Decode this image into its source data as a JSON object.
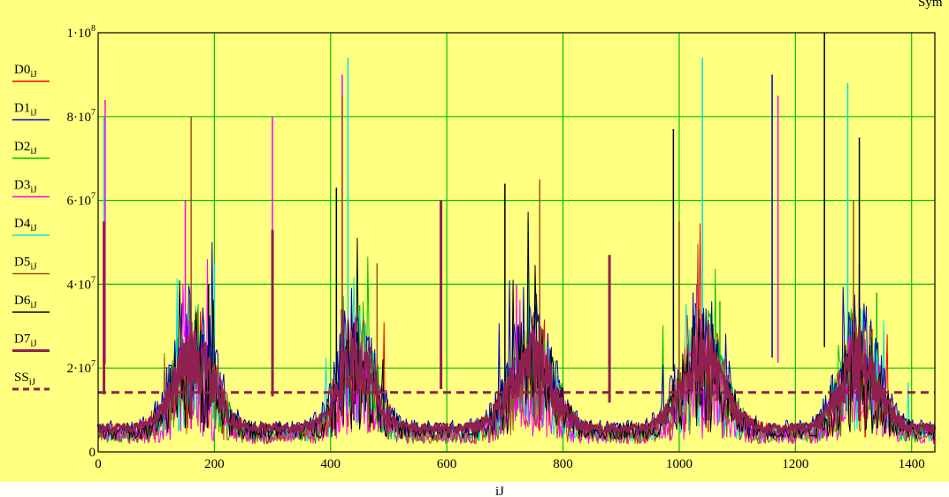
{
  "colors": {
    "background": "#ffff80",
    "grid": "#00c000",
    "frame": "#000000"
  },
  "corner_text": "Sym",
  "chart_data": {
    "type": "line",
    "xlabel": "iJ",
    "ylabel": "",
    "xlim": [
      0,
      1440
    ],
    "ylim": [
      0,
      100000000
    ],
    "x_ticks": [
      {
        "value": 0,
        "label": "0"
      },
      {
        "value": 200,
        "label": "200"
      },
      {
        "value": 400,
        "label": "400"
      },
      {
        "value": 600,
        "label": "600"
      },
      {
        "value": 800,
        "label": "800"
      },
      {
        "value": 1000,
        "label": "1000"
      },
      {
        "value": 1200,
        "label": "1200"
      },
      {
        "value": 1400,
        "label": "1400"
      }
    ],
    "y_ticks": [
      {
        "value": 0,
        "mant": "0",
        "exp": ""
      },
      {
        "value": 20000000,
        "mant": "2·10",
        "exp": "7"
      },
      {
        "value": 40000000,
        "mant": "4·10",
        "exp": "7"
      },
      {
        "value": 60000000,
        "mant": "6·10",
        "exp": "7"
      },
      {
        "value": 80000000,
        "mant": "8·10",
        "exp": "7"
      },
      {
        "value": 100000000,
        "mant": "1·10",
        "exp": "8"
      }
    ],
    "grid": true,
    "legend_position": "left",
    "series": [
      {
        "name": "D0",
        "sub": "iJ",
        "color": "#ff0000",
        "dash": false,
        "width": 1,
        "peaks": [
          [
            160,
            22000000
          ],
          [
            430,
            24000000
          ],
          [
            760,
            20000000
          ],
          [
            1050,
            19000000
          ],
          [
            1320,
            14000000
          ]
        ]
      },
      {
        "name": "D1",
        "sub": "iJ",
        "color": "#0000c0",
        "dash": false,
        "width": 1,
        "peaks": [
          [
            180,
            28000000
          ],
          [
            440,
            30000000
          ],
          [
            750,
            30000000
          ],
          [
            1040,
            33000000
          ],
          [
            1160,
            90000000
          ],
          [
            1310,
            38000000
          ]
        ]
      },
      {
        "name": "D2",
        "sub": "iJ",
        "color": "#00c000",
        "dash": false,
        "width": 1,
        "peaks": [
          [
            170,
            32000000
          ],
          [
            450,
            35000000
          ],
          [
            720,
            34000000
          ],
          [
            1070,
            36000000
          ],
          [
            1340,
            38000000
          ]
        ]
      },
      {
        "name": "D3",
        "sub": "iJ",
        "color": "#ff00ff",
        "dash": false,
        "width": 1,
        "peaks": [
          [
            12,
            84000000
          ],
          [
            150,
            60000000
          ],
          [
            300,
            80000000
          ],
          [
            420,
            90000000
          ],
          [
            720,
            40000000
          ],
          [
            1030,
            40000000
          ],
          [
            1170,
            85000000
          ],
          [
            1310,
            45000000
          ]
        ]
      },
      {
        "name": "D4",
        "sub": "iJ",
        "color": "#00e0e0",
        "dash": false,
        "width": 1,
        "peaks": [
          [
            10,
            80000000
          ],
          [
            200,
            45000000
          ],
          [
            430,
            94000000
          ],
          [
            740,
            55000000
          ],
          [
            1040,
            94000000
          ],
          [
            1290,
            88000000
          ]
        ]
      },
      {
        "name": "D5",
        "sub": "iJ",
        "color": "#a05020",
        "dash": false,
        "width": 1,
        "peaks": [
          [
            160,
            80000000
          ],
          [
            420,
            85000000
          ],
          [
            480,
            45000000
          ],
          [
            760,
            65000000
          ],
          [
            1000,
            55000000
          ],
          [
            1300,
            60000000
          ]
        ]
      },
      {
        "name": "D6",
        "sub": "iJ",
        "color": "#000000",
        "dash": false,
        "width": 1,
        "peaks": [
          [
            190,
            40000000
          ],
          [
            410,
            63000000
          ],
          [
            700,
            64000000
          ],
          [
            990,
            77000000
          ],
          [
            1250,
            100000000
          ],
          [
            1310,
            75000000
          ]
        ]
      },
      {
        "name": "D7",
        "sub": "iJ",
        "color": "#902050",
        "dash": false,
        "width": 3,
        "peaks": [
          [
            10,
            55000000
          ],
          [
            160,
            31000000
          ],
          [
            300,
            53000000
          ],
          [
            420,
            34000000
          ],
          [
            590,
            60000000
          ],
          [
            760,
            30000000
          ],
          [
            880,
            47000000
          ],
          [
            1050,
            30000000
          ],
          [
            1310,
            30000000
          ]
        ]
      },
      {
        "name": "SS",
        "sub": "iJ",
        "color": "#902050",
        "dash": true,
        "width": 3,
        "constant": 14200000
      }
    ]
  }
}
